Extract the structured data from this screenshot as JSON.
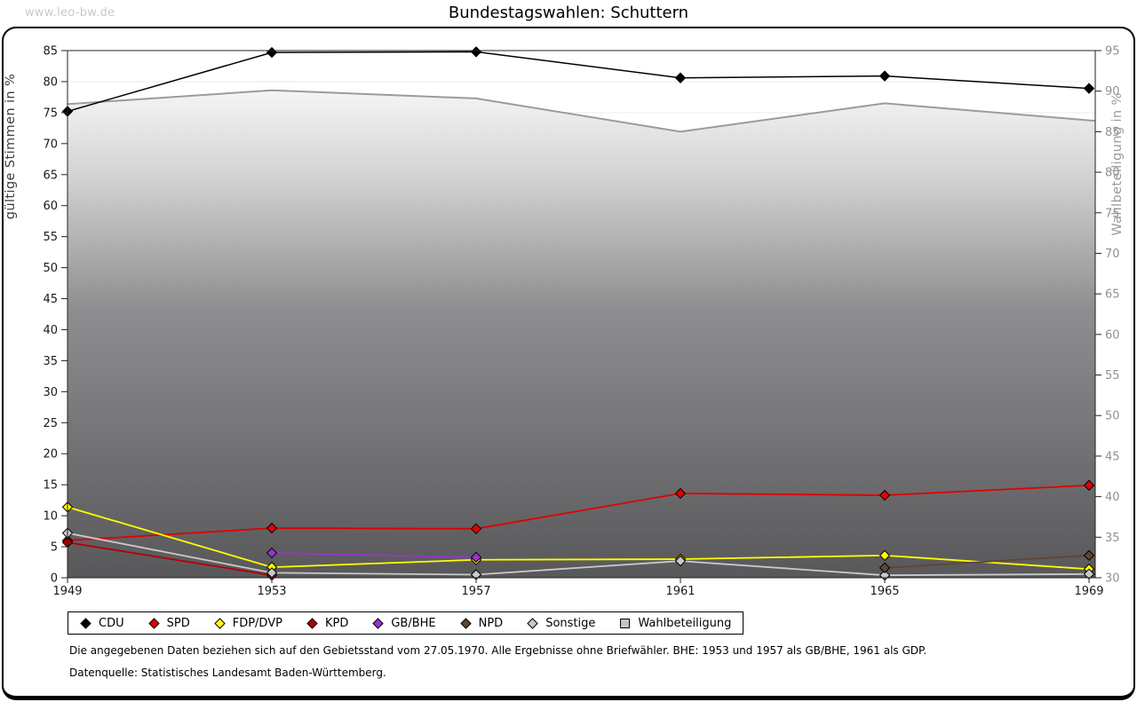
{
  "header": {
    "watermark": "www.leo-bw.de",
    "title": "Bundestagswahlen: Schuttern"
  },
  "chart_data": {
    "type": "line",
    "title": "Bundestagswahlen: Schuttern",
    "x": [
      1949,
      1953,
      1957,
      1961,
      1965,
      1969
    ],
    "y_left": {
      "label": "gültige Stimmen in %",
      "min": 0,
      "max": 85,
      "ticks": [
        0,
        5,
        10,
        15,
        20,
        25,
        30,
        35,
        40,
        45,
        50,
        55,
        60,
        65,
        70,
        75,
        80,
        85
      ]
    },
    "y_right": {
      "label": "Wahlbeteiligung in %",
      "min": 30,
      "max": 95,
      "ticks": [
        30,
        35,
        40,
        45,
        50,
        55,
        60,
        65,
        70,
        75,
        80,
        85,
        90,
        95
      ]
    },
    "grid": true,
    "legend_position": "bottom",
    "series": [
      {
        "name": "CDU",
        "axis": "left",
        "color": "#000000",
        "marker": "diamond",
        "values": [
          75.2,
          84.7,
          84.8,
          80.6,
          80.9,
          78.9
        ]
      },
      {
        "name": "SPD",
        "axis": "left",
        "color": "#e00000",
        "marker": "diamond",
        "values": [
          6.0,
          8.0,
          7.9,
          13.6,
          13.3,
          14.9
        ]
      },
      {
        "name": "FDP/DVP",
        "axis": "left",
        "color": "#ffff00",
        "marker": "diamond",
        "values": [
          11.4,
          1.7,
          2.9,
          3.0,
          3.6,
          1.4
        ]
      },
      {
        "name": "KPD",
        "axis": "left",
        "color": "#b30000",
        "marker": "diamond",
        "values": [
          5.7,
          0.4,
          null,
          null,
          null,
          null
        ]
      },
      {
        "name": "GB/BHE",
        "axis": "left",
        "color": "#9933cc",
        "marker": "diamond",
        "values": [
          null,
          4.0,
          3.3,
          null,
          null,
          null
        ]
      },
      {
        "name": "NPD",
        "axis": "left",
        "color": "#5e4632",
        "marker": "diamond",
        "values": [
          null,
          null,
          null,
          null,
          1.6,
          3.6
        ]
      },
      {
        "name": "Sonstige",
        "axis": "left",
        "color": "#c9c9c9",
        "marker": "diamond",
        "values": [
          7.2,
          0.8,
          0.5,
          2.7,
          0.4,
          0.6
        ]
      },
      {
        "name": "Wahlbeteiligung",
        "axis": "right",
        "color": "#9b9b9b",
        "marker": "square",
        "area": true,
        "area_gradient": [
          "#f5f5f5",
          "#d2d2d2",
          "#8e8e90",
          "#58585a"
        ],
        "values": [
          88.4,
          90.1,
          89.1,
          85.0,
          88.5,
          86.4
        ]
      }
    ]
  },
  "footnotes": {
    "gebietsstand": "Die angegebenen Daten beziehen sich auf den Gebietsstand vom 27.05.1970. Alle Ergebnisse ohne Briefwähler. BHE: 1953 und 1957 als GB/BHE, 1961 als GDP.",
    "quelle": "Datenquelle: Statistisches Landesamt Baden-Württemberg."
  }
}
